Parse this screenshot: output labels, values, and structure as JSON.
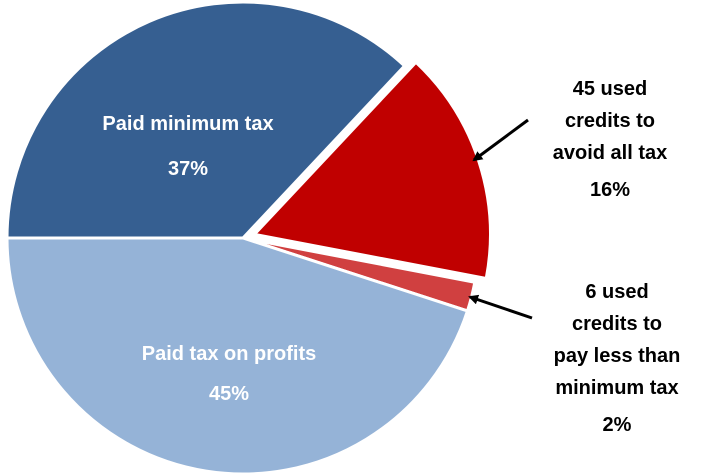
{
  "chart_data": {
    "type": "pie",
    "slices": [
      {
        "label": "Paid minimum tax",
        "value": 37,
        "value_label": "37%",
        "color": "#365f91",
        "label_lines": [
          "Paid minimum tax"
        ],
        "exploded": false
      },
      {
        "label": "45 used credits to avoid all tax",
        "value": 16,
        "value_label": "16%",
        "color": "#c00000",
        "label_lines": [
          "45 used",
          "credits to",
          "avoid all tax"
        ],
        "exploded": true
      },
      {
        "label": "6 used credits to pay less than minimum tax",
        "value": 2,
        "value_label": "2%",
        "color": "#d04040",
        "label_lines": [
          "6 used",
          "credits to",
          "pay less than",
          "minimum tax"
        ],
        "exploded": false
      },
      {
        "label": "Paid tax on profits",
        "value": 45,
        "value_label": "45%",
        "color": "#95b3d7",
        "label_lines": [
          "Paid tax on profits"
        ],
        "exploded": false
      }
    ],
    "legend": "none"
  }
}
